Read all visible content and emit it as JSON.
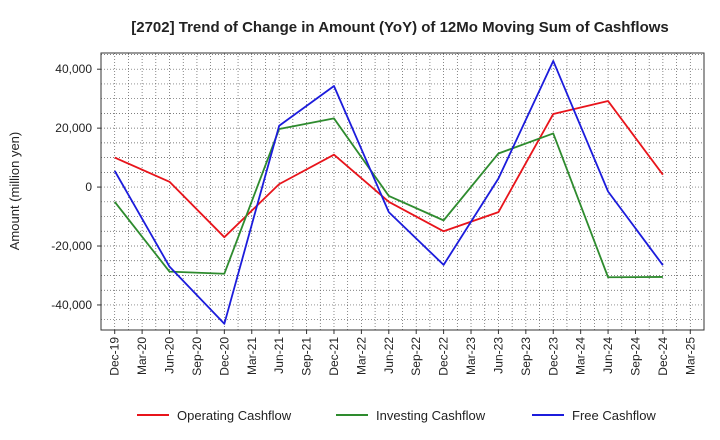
{
  "chart_data": {
    "type": "line",
    "title": "[2702]  Trend of Change in Amount (YoY) of 12Mo Moving Sum of Cashflows",
    "xlabel": "",
    "ylabel": "Amount (million yen)",
    "categories": [
      "Dec-19",
      "Mar-20",
      "Jun-20",
      "Sep-20",
      "Dec-20",
      "Mar-21",
      "Jun-21",
      "Sep-21",
      "Dec-21",
      "Mar-22",
      "Jun-22",
      "Sep-22",
      "Dec-22",
      "Mar-23",
      "Jun-23",
      "Sep-23",
      "Dec-23",
      "Mar-24",
      "Jun-24",
      "Sep-24",
      "Dec-24",
      "Mar-25"
    ],
    "ylim": [
      -48500,
      45500
    ],
    "yticks": [
      -40000,
      -20000,
      0,
      20000,
      40000
    ],
    "ytick_labels": [
      "-40,000",
      "-20,000",
      "0",
      "20,000",
      "40,000"
    ],
    "grid": true,
    "legend_position": "bottom",
    "series": [
      {
        "name": "Operating Cashflow",
        "color": "#e8141b",
        "values": [
          10000,
          null,
          1800,
          null,
          -17000,
          null,
          1000,
          null,
          11000,
          null,
          -5000,
          null,
          -15000,
          null,
          -8500,
          null,
          24800,
          null,
          29200,
          null,
          4200,
          null
        ]
      },
      {
        "name": "Investing Cashflow",
        "color": "#2e8b2e",
        "values": [
          -5000,
          null,
          -28700,
          null,
          -29400,
          null,
          19700,
          null,
          23300,
          null,
          -3000,
          null,
          -11300,
          null,
          11400,
          null,
          18200,
          null,
          -30600,
          null,
          -30500,
          null
        ]
      },
      {
        "name": "Free Cashflow",
        "color": "#1c1cdc",
        "values": [
          5500,
          null,
          -27000,
          null,
          -46400,
          null,
          20800,
          null,
          34300,
          null,
          -8500,
          null,
          -26400,
          null,
          2900,
          null,
          42800,
          null,
          -1500,
          null,
          -26500,
          null
        ]
      }
    ]
  }
}
